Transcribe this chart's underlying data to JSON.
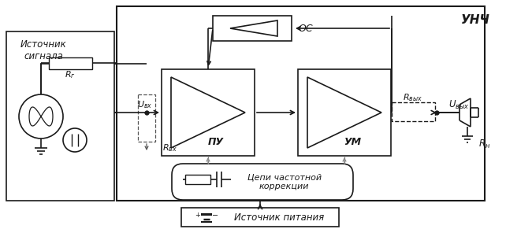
{
  "bg_color": "#ffffff",
  "line_color": "#1a1a1a",
  "fig_width": 6.42,
  "fig_height": 2.91,
  "title_unch": "УНЧ",
  "label_pu": "ПУ",
  "label_um": "УМ",
  "label_os": "ОС",
  "label_cc": "Цепи частотной\nкоррекции",
  "label_ps": "Источник питания",
  "label_source": "Источник\nсигнала",
  "label_rg": "$R_г$",
  "label_rvx": "$R_{вх}$",
  "label_rvyx": "$R_{вых}$",
  "label_uvx": "$U_{вх}$",
  "label_uvyx": "$U_{вых}$",
  "label_rn": "$R_н$"
}
